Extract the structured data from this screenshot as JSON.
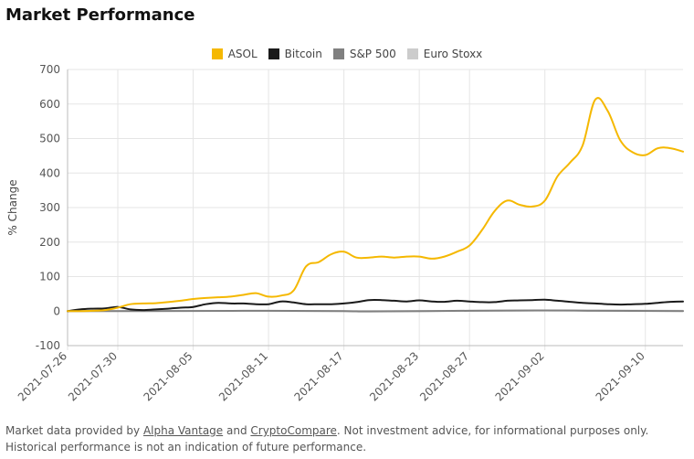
{
  "page": {
    "title": "Market Performance"
  },
  "footer": {
    "prefix": "Market data provided by ",
    "link1": "Alpha Vantage",
    "middle": " and ",
    "link2": "CryptoCompare",
    "suffix": ". Not investment advice, for informational purposes only. Historical performance is not an indication of future performance."
  },
  "chart_data": {
    "type": "line",
    "title": "",
    "xlabel": "",
    "ylabel": "% Change",
    "ylim": [
      -100,
      700
    ],
    "yticks": [
      -100,
      0,
      100,
      200,
      300,
      400,
      500,
      600,
      700
    ],
    "xlim": [
      "2021-07-26",
      "2021-09-13"
    ],
    "xticks": [
      "2021-07-26",
      "2021-07-30",
      "2021-08-05",
      "2021-08-11",
      "2021-08-17",
      "2021-08-23",
      "2021-08-27",
      "2021-09-02",
      "2021-09-10"
    ],
    "grid": true,
    "legend_position": "top-center",
    "series": [
      {
        "name": "ASOL",
        "color": "#f5b800",
        "points": [
          [
            "2021-07-26",
            0
          ],
          [
            "2021-07-27",
            0
          ],
          [
            "2021-07-28",
            1
          ],
          [
            "2021-07-29",
            3
          ],
          [
            "2021-07-30",
            10
          ],
          [
            "2021-07-31",
            20
          ],
          [
            "2021-08-01",
            22
          ],
          [
            "2021-08-02",
            23
          ],
          [
            "2021-08-03",
            26
          ],
          [
            "2021-08-04",
            30
          ],
          [
            "2021-08-05",
            35
          ],
          [
            "2021-08-06",
            38
          ],
          [
            "2021-08-07",
            40
          ],
          [
            "2021-08-08",
            42
          ],
          [
            "2021-08-09",
            47
          ],
          [
            "2021-08-10",
            52
          ],
          [
            "2021-08-11",
            42
          ],
          [
            "2021-08-12",
            45
          ],
          [
            "2021-08-13",
            60
          ],
          [
            "2021-08-14",
            130
          ],
          [
            "2021-08-15",
            142
          ],
          [
            "2021-08-16",
            165
          ],
          [
            "2021-08-17",
            172
          ],
          [
            "2021-08-18",
            155
          ],
          [
            "2021-08-19",
            155
          ],
          [
            "2021-08-20",
            158
          ],
          [
            "2021-08-21",
            155
          ],
          [
            "2021-08-22",
            158
          ],
          [
            "2021-08-23",
            158
          ],
          [
            "2021-08-24",
            152
          ],
          [
            "2021-08-25",
            158
          ],
          [
            "2021-08-26",
            172
          ],
          [
            "2021-08-27",
            190
          ],
          [
            "2021-08-28",
            235
          ],
          [
            "2021-08-29",
            290
          ],
          [
            "2021-08-30",
            320
          ],
          [
            "2021-08-31",
            308
          ],
          [
            "2021-09-01",
            303
          ],
          [
            "2021-09-02",
            320
          ],
          [
            "2021-09-03",
            390
          ],
          [
            "2021-09-04",
            430
          ],
          [
            "2021-09-05",
            480
          ],
          [
            "2021-09-06",
            612
          ],
          [
            "2021-09-07",
            580
          ],
          [
            "2021-09-08",
            495
          ],
          [
            "2021-09-09",
            460
          ],
          [
            "2021-09-10",
            452
          ],
          [
            "2021-09-11",
            472
          ],
          [
            "2021-09-12",
            472
          ],
          [
            "2021-09-13",
            462
          ]
        ]
      },
      {
        "name": "Bitcoin",
        "color": "#1a1a1a",
        "points": [
          [
            "2021-07-26",
            0
          ],
          [
            "2021-07-27",
            5
          ],
          [
            "2021-07-28",
            7
          ],
          [
            "2021-07-29",
            8
          ],
          [
            "2021-07-30",
            12
          ],
          [
            "2021-07-31",
            5
          ],
          [
            "2021-08-01",
            3
          ],
          [
            "2021-08-02",
            5
          ],
          [
            "2021-08-03",
            7
          ],
          [
            "2021-08-04",
            10
          ],
          [
            "2021-08-05",
            12
          ],
          [
            "2021-08-06",
            20
          ],
          [
            "2021-08-07",
            24
          ],
          [
            "2021-08-08",
            22
          ],
          [
            "2021-08-09",
            22
          ],
          [
            "2021-08-10",
            20
          ],
          [
            "2021-08-11",
            20
          ],
          [
            "2021-08-12",
            28
          ],
          [
            "2021-08-13",
            25
          ],
          [
            "2021-08-14",
            20
          ],
          [
            "2021-08-15",
            20
          ],
          [
            "2021-08-16",
            20
          ],
          [
            "2021-08-17",
            22
          ],
          [
            "2021-08-18",
            26
          ],
          [
            "2021-08-19",
            32
          ],
          [
            "2021-08-20",
            32
          ],
          [
            "2021-08-21",
            30
          ],
          [
            "2021-08-22",
            28
          ],
          [
            "2021-08-23",
            31
          ],
          [
            "2021-08-24",
            28
          ],
          [
            "2021-08-25",
            27
          ],
          [
            "2021-08-26",
            30
          ],
          [
            "2021-08-27",
            28
          ],
          [
            "2021-08-28",
            26
          ],
          [
            "2021-08-29",
            26
          ],
          [
            "2021-08-30",
            30
          ],
          [
            "2021-08-31",
            31
          ],
          [
            "2021-09-01",
            32
          ],
          [
            "2021-09-02",
            33
          ],
          [
            "2021-09-03",
            30
          ],
          [
            "2021-09-04",
            27
          ],
          [
            "2021-09-05",
            24
          ],
          [
            "2021-09-06",
            22
          ],
          [
            "2021-09-07",
            20
          ],
          [
            "2021-09-08",
            19
          ],
          [
            "2021-09-09",
            20
          ],
          [
            "2021-09-10",
            21
          ],
          [
            "2021-09-11",
            24
          ],
          [
            "2021-09-12",
            27
          ],
          [
            "2021-09-13",
            28
          ]
        ]
      },
      {
        "name": "S&P 500",
        "color": "#808080",
        "points": [
          [
            "2021-07-26",
            0
          ],
          [
            "2021-08-01",
            0
          ],
          [
            "2021-08-09",
            1
          ],
          [
            "2021-08-17",
            0
          ],
          [
            "2021-08-19",
            -1
          ],
          [
            "2021-08-27",
            1
          ],
          [
            "2021-09-02",
            2
          ],
          [
            "2021-09-06",
            1
          ],
          [
            "2021-09-13",
            0
          ]
        ]
      },
      {
        "name": "Euro Stoxx",
        "color": "#cccccc",
        "points": [
          [
            "2021-07-26",
            0
          ],
          [
            "2021-08-05",
            1
          ],
          [
            "2021-08-17",
            0
          ],
          [
            "2021-08-27",
            1
          ],
          [
            "2021-09-06",
            2
          ],
          [
            "2021-09-13",
            1
          ]
        ]
      }
    ]
  }
}
